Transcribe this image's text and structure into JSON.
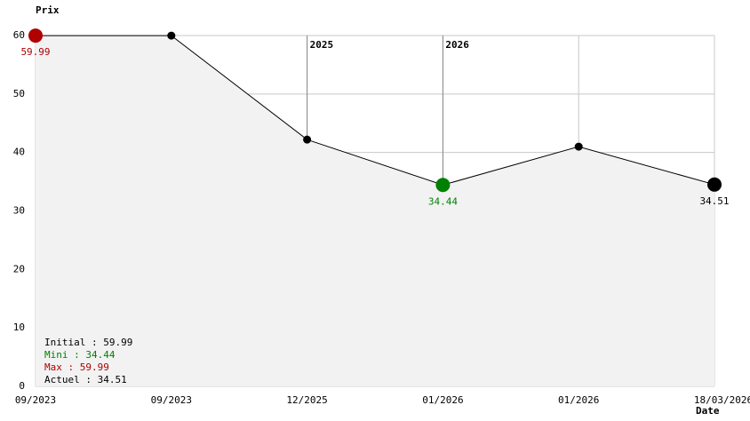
{
  "chart_data": {
    "type": "line",
    "y_label": "Prix",
    "x_label": "Date",
    "categories": [
      "09/2023",
      "09/2023",
      "12/2025",
      "01/2026",
      "01/2026",
      "18/03/2026"
    ],
    "annotations": [
      null,
      null,
      "2025",
      "2026",
      null,
      null
    ],
    "values": [
      59.99,
      59.99,
      42.2,
      34.44,
      41.0,
      34.51
    ],
    "color": "#000000",
    "max_color": "#b00000",
    "min_color": "#008000",
    "fill": "#f2f2f2",
    "ylim": [
      0,
      60
    ],
    "yticks": [
      0,
      10,
      20,
      30,
      40,
      50,
      60
    ],
    "grid": true,
    "stats": [
      {
        "text": "Initial : 59.99",
        "color": "#000000"
      },
      {
        "text": "Mini : 34.44",
        "color": "#008000"
      },
      {
        "text": "Max : 59.99",
        "color": "#b00000"
      },
      {
        "text": "Actuel : 34.51",
        "color": "#000000"
      }
    ]
  }
}
